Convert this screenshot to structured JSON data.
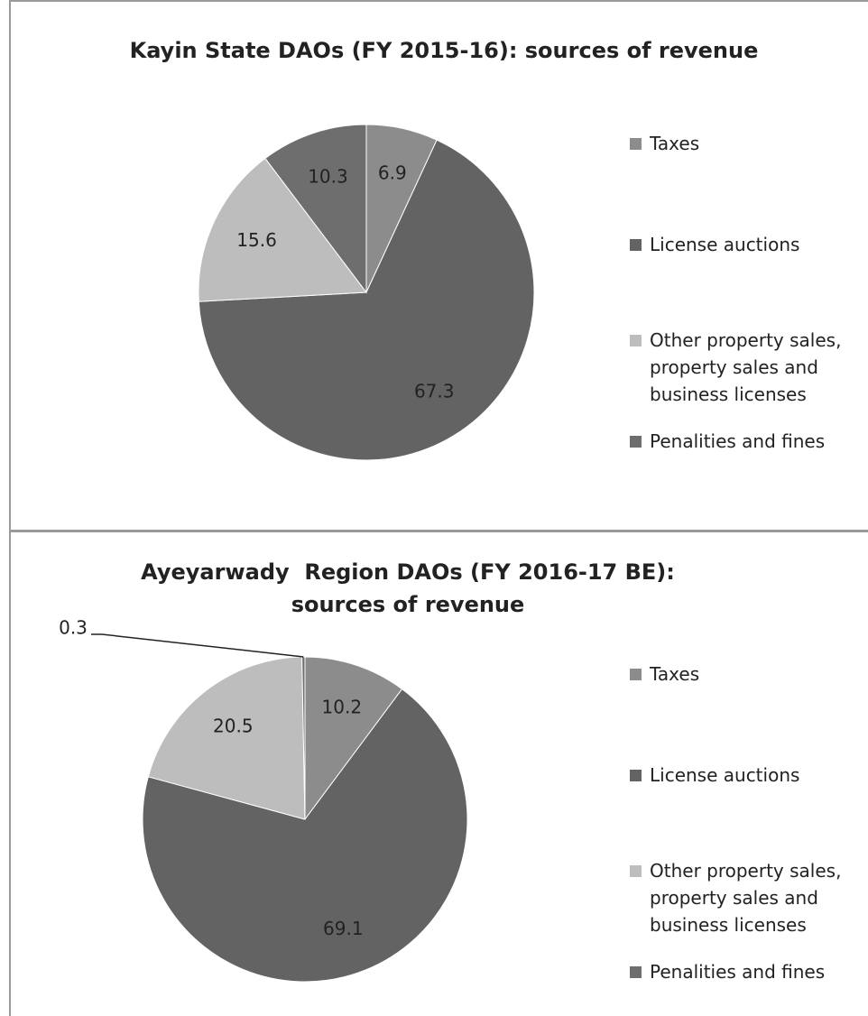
{
  "chart_data": [
    {
      "type": "pie",
      "title": "Kayin State DAOs (FY 2015-16): sources of revenue",
      "categories": [
        "Taxes",
        "License auctions",
        "Other property sales, property sales and business licenses",
        "Penalities and fines"
      ],
      "values": [
        6.9,
        67.3,
        15.6,
        10.3
      ],
      "colors": [
        "#8c8c8c",
        "#636363",
        "#bdbdbd",
        "#6e6e6e"
      ],
      "legend": "right"
    },
    {
      "type": "pie",
      "title": "Ayeyarwady  Region DAOs (FY 2016-17 BE): sources of revenue",
      "categories": [
        "Taxes",
        "License auctions",
        "Other property sales, property sales and business licenses",
        "Penalities and fines"
      ],
      "values": [
        10.2,
        69.1,
        20.5,
        0.3
      ],
      "colors": [
        "#8c8c8c",
        "#636363",
        "#bdbdbd",
        "#6e6e6e"
      ],
      "legend": "right"
    }
  ]
}
